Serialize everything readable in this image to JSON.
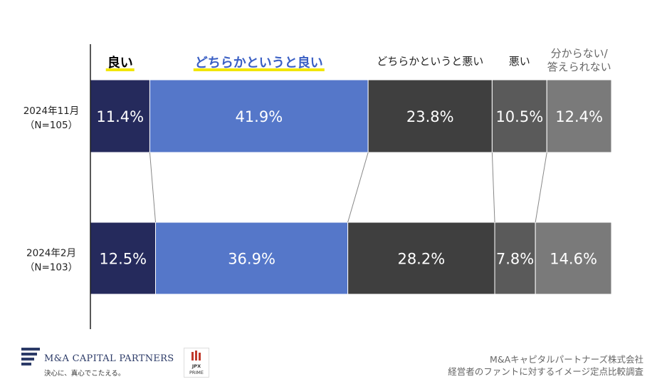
{
  "chart_data": {
    "type": "bar",
    "orientation": "horizontal",
    "stacked": "100%",
    "categories": [
      "2024年11月\n（N=105）",
      "2024年2月\n（N=103）"
    ],
    "series": [
      {
        "name": "良い",
        "values": [
          11.4,
          12.5
        ],
        "color": "#252a5c",
        "highlight": true
      },
      {
        "name": "どちらかというと良い",
        "values": [
          41.9,
          36.9
        ],
        "color": "#5577c9",
        "highlight": true
      },
      {
        "name": "どちらかというと悪い",
        "values": [
          23.8,
          28.2
        ],
        "color": "#3f3f3f",
        "highlight": false
      },
      {
        "name": "悪い",
        "values": [
          10.5,
          7.8
        ],
        "color": "#5a5a5a",
        "highlight": false
      },
      {
        "name": "分からない/\n答えられない",
        "values": [
          12.4,
          14.6
        ],
        "color": "#7a7a7a",
        "highlight": false
      }
    ],
    "value_suffix": "%",
    "legend_position": "top",
    "highlight_color": "#f2e600"
  },
  "logo": {
    "name": "M&A CAPITAL PARTNERS",
    "tagline": "決心に、真心でこたえる。",
    "jpx_label": "JPX",
    "prime_label": "PRIME"
  },
  "footer": {
    "line1": "M&Aキャピタルパートナーズ株式会社",
    "line2": "経営者のファントに対するイメージ定点比較調査"
  }
}
